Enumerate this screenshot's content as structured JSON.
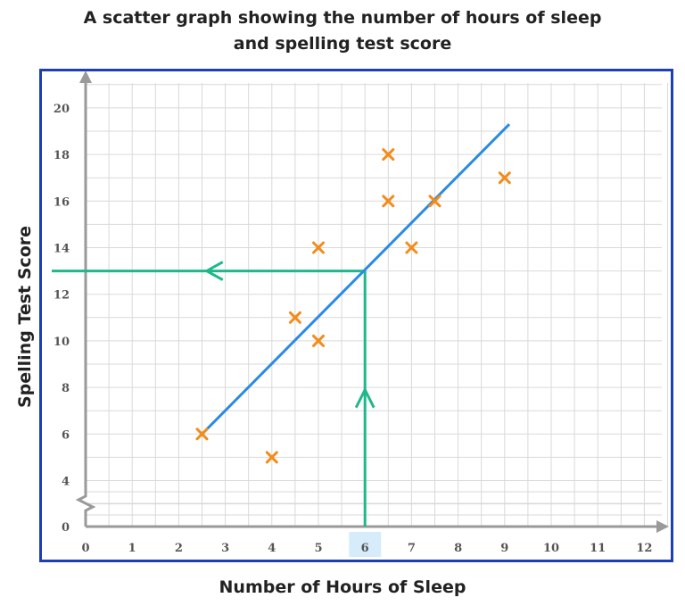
{
  "colors": {
    "frame": "#1d3fb3",
    "grid": "#d9d9d9",
    "axis": "#9a9a9a",
    "points": "#f28c1b",
    "trend": "#2b8ae6",
    "guide": "#1fb88a",
    "highlight": "#d6ecfb"
  },
  "chart_data": {
    "type": "scatter",
    "title": "A scatter graph showing the number of hours of sleep and spelling test score",
    "title_lines": [
      "A scatter graph showing the number of hours of sleep",
      "and spelling test score"
    ],
    "xlabel": "Number of Hours of Sleep",
    "ylabel": "Spelling Test Score",
    "xlim": [
      0,
      12.6
    ],
    "ylim": [
      0,
      21
    ],
    "y_axis_break": true,
    "x_ticks": [
      0,
      1,
      2,
      3,
      4,
      5,
      6,
      7,
      8,
      9,
      10,
      11,
      12
    ],
    "x_tick_labels": [
      "0",
      "1",
      "2",
      "3",
      "4",
      "5",
      "6",
      "7",
      "8",
      "9",
      "10",
      "11",
      "12"
    ],
    "y_ticks": [
      0,
      4,
      6,
      8,
      10,
      12,
      14,
      16,
      18,
      20
    ],
    "y_tick_labels": [
      "0",
      "4",
      "6",
      "8",
      "10",
      "12",
      "14",
      "16",
      "18",
      "20"
    ],
    "highlighted_x_tick": 6,
    "grid": true,
    "marker": "x",
    "points": [
      {
        "x": 2.5,
        "y": 6
      },
      {
        "x": 4,
        "y": 5
      },
      {
        "x": 4.5,
        "y": 11
      },
      {
        "x": 5,
        "y": 10
      },
      {
        "x": 5,
        "y": 14
      },
      {
        "x": 6.5,
        "y": 18
      },
      {
        "x": 6.5,
        "y": 16
      },
      {
        "x": 7,
        "y": 14
      },
      {
        "x": 7.5,
        "y": 16
      },
      {
        "x": 9,
        "y": 17
      }
    ],
    "line_of_best_fit": {
      "from": {
        "x": 2.5,
        "y": 6
      },
      "to": {
        "x": 9.1,
        "y": 19.3
      }
    },
    "estimate": {
      "x": 6,
      "y": 13
    }
  }
}
